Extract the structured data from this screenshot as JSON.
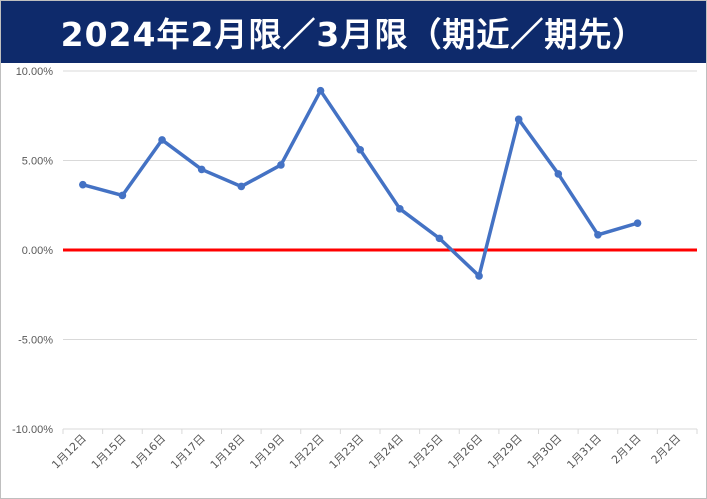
{
  "header": {
    "title": "2024年2月限／3月限（期近／期先）"
  },
  "chart_data": {
    "type": "line",
    "title": "2024年2月限／3月限（期近／期先）",
    "xlabel": "",
    "ylabel": "",
    "categories": [
      "1月12日",
      "1月15日",
      "1月16日",
      "1月17日",
      "1月18日",
      "1月19日",
      "1月22日",
      "1月23日",
      "1月24日",
      "1月25日",
      "1月26日",
      "1月29日",
      "1月30日",
      "1月31日",
      "2月1日",
      "2月2日"
    ],
    "series": [
      {
        "values": [
          3.65,
          3.05,
          6.15,
          4.5,
          3.55,
          4.75,
          8.9,
          5.6,
          2.3,
          0.65,
          -1.45,
          7.3,
          4.25,
          0.85,
          1.5,
          null
        ]
      }
    ],
    "ylim": [
      -10,
      10
    ],
    "yticks": [
      -10,
      -5,
      0,
      5,
      10
    ],
    "ytick_labels": [
      "-10.00%",
      "-5.00%",
      "0.00%",
      "5.00%",
      "10.00%"
    ],
    "grid": true,
    "colors": {
      "series": "#4472c4",
      "zero_line": "#ff0000",
      "grid": "#d9d9d9",
      "header_bg": "#0e2a6b"
    }
  }
}
